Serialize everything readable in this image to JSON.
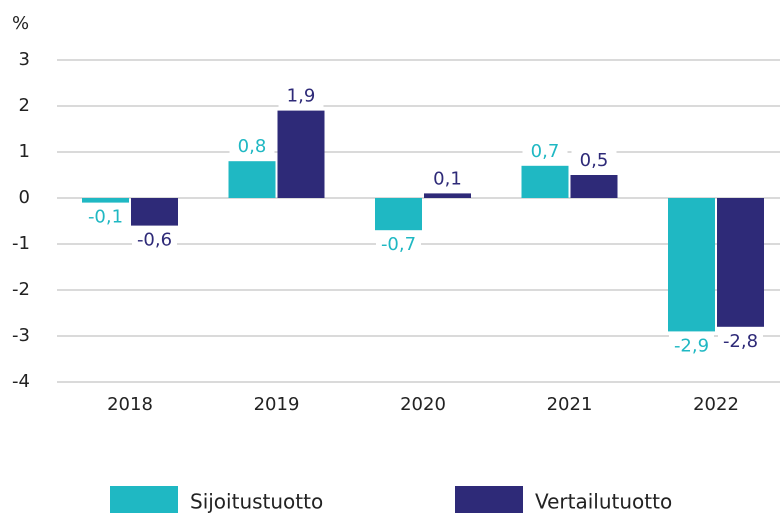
{
  "chart_data": {
    "type": "bar",
    "y_label": "%",
    "categories": [
      "2018",
      "2019",
      "2020",
      "2021",
      "2022"
    ],
    "series": [
      {
        "name": "Sijoitustuotto",
        "color": "#1fb8c3",
        "values": [
          -0.1,
          0.8,
          -0.7,
          0.7,
          -2.9
        ],
        "value_labels": [
          "-0,1",
          "0,8",
          "-0,7",
          "0,7",
          "-2,9"
        ]
      },
      {
        "name": "Vertailutuotto",
        "color": "#2e2a78",
        "values": [
          -0.6,
          1.9,
          0.1,
          0.5,
          -2.8
        ],
        "value_labels": [
          "-0,6",
          "1,9",
          "0,1",
          "0,5",
          "-2,8"
        ]
      }
    ],
    "ylim": [
      -4,
      3
    ],
    "yticks": [
      -4,
      -3,
      -2,
      -1,
      0,
      1,
      2,
      3
    ],
    "grid": true
  }
}
